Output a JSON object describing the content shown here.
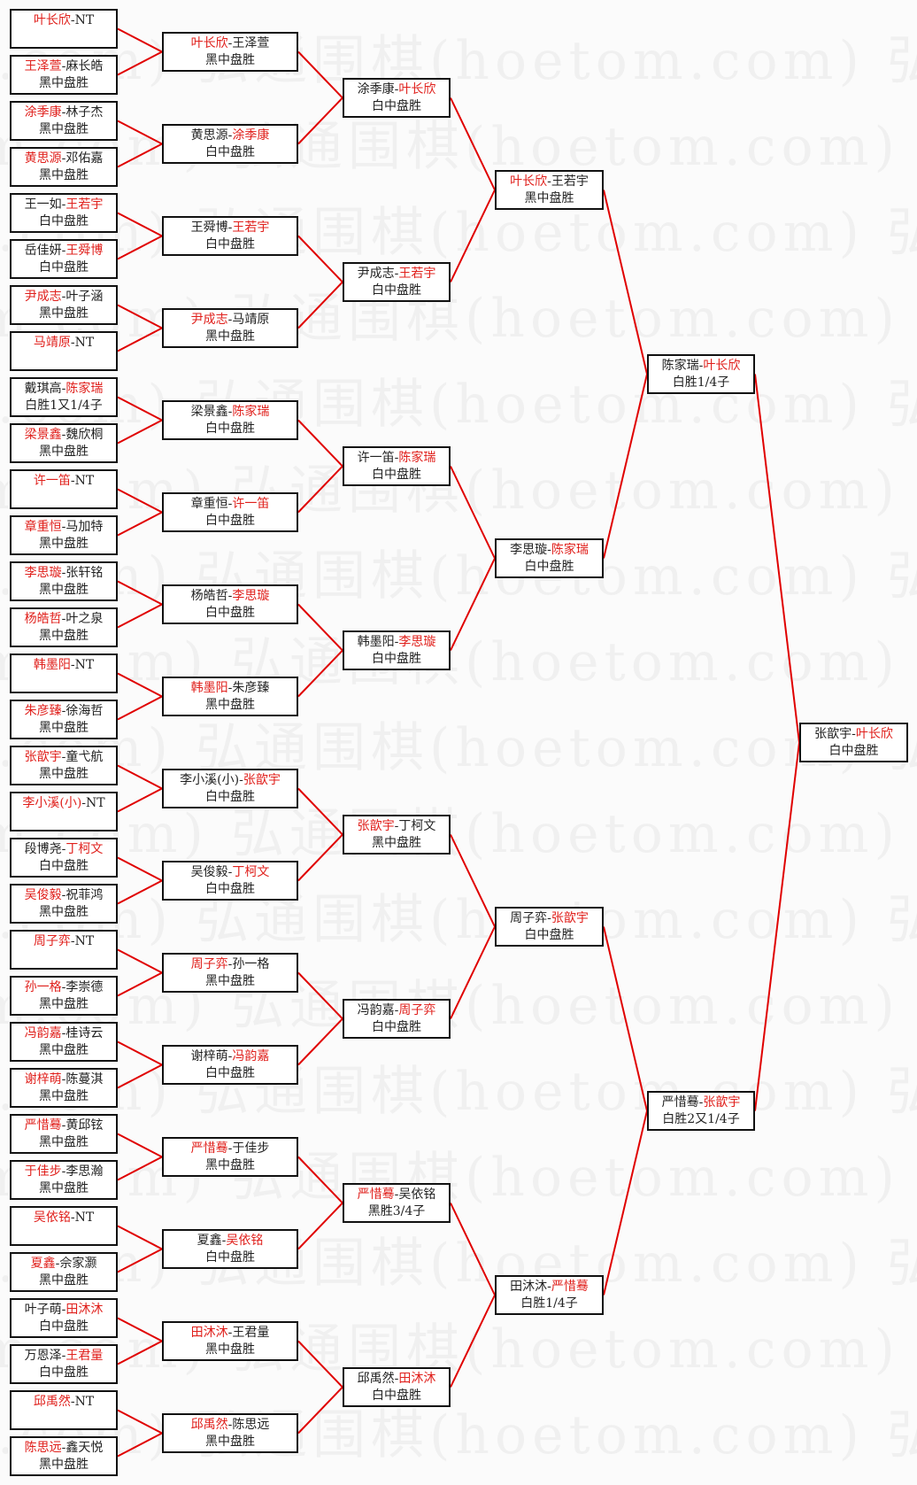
{
  "watermark": "弘通围棋(hoetom.com)",
  "colors": {
    "winner": "#e0201c",
    "line": "#e00000",
    "border": "#111111"
  },
  "rounds": [
    {
      "matches": [
        {
          "a": "叶长欣",
          "b": "NT",
          "w": 0,
          "r": ""
        },
        {
          "a": "王泽萱",
          "b": "麻长皓",
          "w": 0,
          "r": "黑中盘胜"
        },
        {
          "a": "涂季康",
          "b": "林子杰",
          "w": 0,
          "r": "黑中盘胜"
        },
        {
          "a": "黄思源",
          "b": "邓佑嘉",
          "w": 0,
          "r": "黑中盘胜"
        },
        {
          "a": "王一如",
          "b": "王若宇",
          "w": 1,
          "r": "白中盘胜"
        },
        {
          "a": "岳佳妍",
          "b": "王舜博",
          "w": 1,
          "r": "白中盘胜"
        },
        {
          "a": "尹成志",
          "b": "叶子涵",
          "w": 0,
          "r": "黑中盘胜"
        },
        {
          "a": "马靖原",
          "b": "NT",
          "w": 0,
          "r": ""
        },
        {
          "a": "戴琪高",
          "b": "陈家瑞",
          "w": 1,
          "r": "白胜1又1/4子"
        },
        {
          "a": "梁景鑫",
          "b": "魏欣桐",
          "w": 0,
          "r": "黑中盘胜"
        },
        {
          "a": "许一笛",
          "b": "NT",
          "w": 0,
          "r": ""
        },
        {
          "a": "章重恒",
          "b": "马加特",
          "w": 0,
          "r": "黑中盘胜"
        },
        {
          "a": "李思璇",
          "b": "张轩铭",
          "w": 0,
          "r": "黑中盘胜"
        },
        {
          "a": "杨皓哲",
          "b": "叶之泉",
          "w": 0,
          "r": "黑中盘胜"
        },
        {
          "a": "韩墨阳",
          "b": "NT",
          "w": 0,
          "r": ""
        },
        {
          "a": "朱彦臻",
          "b": "徐海哲",
          "w": 0,
          "r": "黑中盘胜"
        },
        {
          "a": "张歆宇",
          "b": "童弋航",
          "w": 0,
          "r": "黑中盘胜"
        },
        {
          "a": "李小溪(小)",
          "b": "NT",
          "w": 0,
          "r": ""
        },
        {
          "a": "段博尧",
          "b": "丁柯文",
          "w": 1,
          "r": "白中盘胜"
        },
        {
          "a": "吴俊毅",
          "b": "祝菲鸿",
          "w": 0,
          "r": "黑中盘胜"
        },
        {
          "a": "周子弈",
          "b": "NT",
          "w": 0,
          "r": ""
        },
        {
          "a": "孙一格",
          "b": "李崇德",
          "w": 0,
          "r": "黑中盘胜"
        },
        {
          "a": "冯韵嘉",
          "b": "桂诗云",
          "w": 0,
          "r": "黑中盘胜"
        },
        {
          "a": "谢梓萌",
          "b": "陈蔓淇",
          "w": 0,
          "r": "黑中盘胜"
        },
        {
          "a": "严惜蓦",
          "b": "黄邱铉",
          "w": 0,
          "r": "黑中盘胜"
        },
        {
          "a": "于佳步",
          "b": "李思瀚",
          "w": 0,
          "r": "黑中盘胜"
        },
        {
          "a": "吴依铭",
          "b": "NT",
          "w": 0,
          "r": ""
        },
        {
          "a": "夏鑫",
          "b": "佘家灏",
          "w": 0,
          "r": "黑中盘胜"
        },
        {
          "a": "叶子萌",
          "b": "田沐沐",
          "w": 1,
          "r": "白中盘胜"
        },
        {
          "a": "万恩泽",
          "b": "王君量",
          "w": 1,
          "r": "白中盘胜"
        },
        {
          "a": "邱禹然",
          "b": "NT",
          "w": 0,
          "r": ""
        },
        {
          "a": "陈思远",
          "b": "鑫天悦",
          "w": 0,
          "r": "黑中盘胜"
        }
      ]
    },
    {
      "matches": [
        {
          "a": "叶长欣",
          "b": "王泽萱",
          "w": 0,
          "r": "黑中盘胜"
        },
        {
          "a": "黄思源",
          "b": "涂季康",
          "w": 1,
          "r": "白中盘胜"
        },
        {
          "a": "王舜博",
          "b": "王若宇",
          "w": 1,
          "r": "白中盘胜"
        },
        {
          "a": "尹成志",
          "b": "马靖原",
          "w": 0,
          "r": "黑中盘胜"
        },
        {
          "a": "梁景鑫",
          "b": "陈家瑞",
          "w": 1,
          "r": "白中盘胜"
        },
        {
          "a": "章重恒",
          "b": "许一笛",
          "w": 1,
          "r": "白中盘胜"
        },
        {
          "a": "杨皓哲",
          "b": "李思璇",
          "w": 1,
          "r": "白中盘胜"
        },
        {
          "a": "韩墨阳",
          "b": "朱彦臻",
          "w": 0,
          "r": "黑中盘胜"
        },
        {
          "a": "李小溪(小)",
          "b": "张歆宇",
          "w": 1,
          "r": "白中盘胜"
        },
        {
          "a": "吴俊毅",
          "b": "丁柯文",
          "w": 1,
          "r": "白中盘胜"
        },
        {
          "a": "周子弈",
          "b": "孙一格",
          "w": 0,
          "r": "黑中盘胜"
        },
        {
          "a": "谢梓萌",
          "b": "冯韵嘉",
          "w": 1,
          "r": "白中盘胜"
        },
        {
          "a": "严惜蓦",
          "b": "于佳步",
          "w": 0,
          "r": "黑中盘胜"
        },
        {
          "a": "夏鑫",
          "b": "吴依铭",
          "w": 1,
          "r": "白中盘胜"
        },
        {
          "a": "田沐沐",
          "b": "王君量",
          "w": 0,
          "r": "黑中盘胜"
        },
        {
          "a": "邱禹然",
          "b": "陈思远",
          "w": 0,
          "r": "黑中盘胜"
        }
      ]
    },
    {
      "matches": [
        {
          "a": "涂季康",
          "b": "叶长欣",
          "w": 1,
          "r": "白中盘胜"
        },
        {
          "a": "尹成志",
          "b": "王若宇",
          "w": 1,
          "r": "白中盘胜"
        },
        {
          "a": "许一笛",
          "b": "陈家瑞",
          "w": 1,
          "r": "白中盘胜"
        },
        {
          "a": "韩墨阳",
          "b": "李思璇",
          "w": 1,
          "r": "白中盘胜"
        },
        {
          "a": "张歆宇",
          "b": "丁柯文",
          "w": 0,
          "r": "黑中盘胜"
        },
        {
          "a": "冯韵嘉",
          "b": "周子弈",
          "w": 1,
          "r": "白中盘胜"
        },
        {
          "a": "严惜蓦",
          "b": "吴依铭",
          "w": 0,
          "r": "黑胜3/4子"
        },
        {
          "a": "邱禹然",
          "b": "田沐沐",
          "w": 1,
          "r": "白中盘胜"
        }
      ]
    },
    {
      "matches": [
        {
          "a": "叶长欣",
          "b": "王若宇",
          "w": 0,
          "r": "黑中盘胜"
        },
        {
          "a": "李思璇",
          "b": "陈家瑞",
          "w": 1,
          "r": "白中盘胜"
        },
        {
          "a": "周子弈",
          "b": "张歆宇",
          "w": 1,
          "r": "白中盘胜"
        },
        {
          "a": "田沐沐",
          "b": "严惜蓦",
          "w": 1,
          "r": "白胜1/4子"
        }
      ]
    },
    {
      "matches": [
        {
          "a": "陈家瑞",
          "b": "叶长欣",
          "w": 1,
          "r": "白胜1/4子"
        },
        {
          "a": "严惜蓦",
          "b": "张歆宇",
          "w": 1,
          "r": "白胜2又1/4子"
        }
      ]
    },
    {
      "matches": [
        {
          "a": "张歆宇",
          "b": "叶长欣",
          "w": 1,
          "r": "白中盘胜"
        }
      ]
    }
  ]
}
